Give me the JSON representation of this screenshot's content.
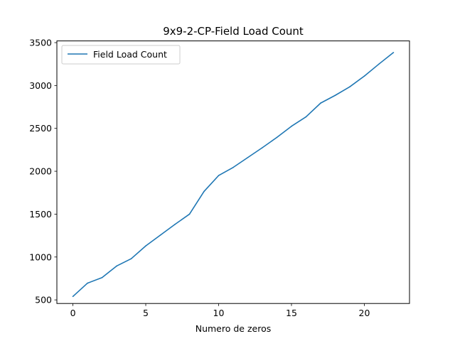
{
  "chart_data": {
    "type": "line",
    "title": "9x9-2-CP-Field Load Count",
    "xlabel": "Numero de zeros",
    "ylabel": "",
    "xlim": [
      -1.1,
      23.1
    ],
    "ylim": [
      458,
      3520
    ],
    "xticks": [
      0,
      5,
      10,
      15,
      20
    ],
    "yticks": [
      500,
      1000,
      1500,
      2000,
      2500,
      3000,
      3500
    ],
    "legend_position": "top-left",
    "grid": false,
    "series": [
      {
        "name": "Field Load Count",
        "color": "#1f77b4",
        "x": [
          0,
          1,
          2,
          3,
          4,
          5,
          6,
          7,
          8,
          9,
          10,
          11,
          12,
          13,
          14,
          15,
          16,
          17,
          18,
          19,
          20,
          21,
          22
        ],
        "y": [
          540,
          695,
          760,
          895,
          980,
          1130,
          1255,
          1380,
          1500,
          1765,
          1950,
          2045,
          2160,
          2275,
          2395,
          2525,
          2635,
          2795,
          2885,
          2985,
          3110,
          3250,
          3385
        ]
      }
    ]
  }
}
